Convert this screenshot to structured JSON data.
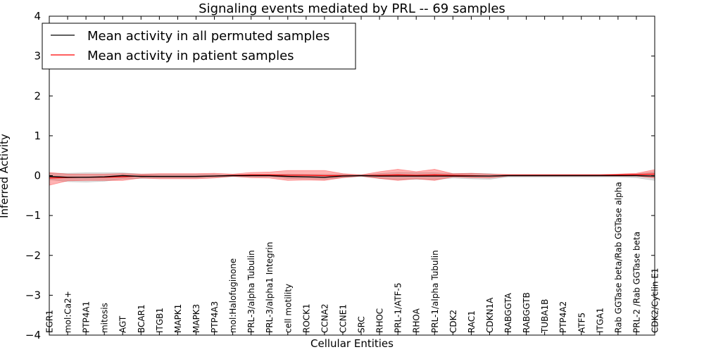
{
  "chart_data": {
    "type": "line",
    "title": "Signaling events mediated by PRL -- 69 samples",
    "xlabel": "Cellular Entities",
    "ylabel": "Inferred Activity",
    "ylim": [
      -4,
      4
    ],
    "yticks": [
      4,
      3,
      2,
      1,
      0,
      -1,
      -2,
      -3,
      -4
    ],
    "ytick_labels": [
      "4",
      "3",
      "2",
      "1",
      "0",
      "−1",
      "−2",
      "−3",
      "−4"
    ],
    "legend_position": "top-left",
    "categories": [
      "EGR1",
      "mol:Ca2+",
      "PTP4A1",
      "mitosis",
      "AGT",
      "BCAR1",
      "ITGB1",
      "MAPK1",
      "MAPK3",
      "PTP4A3",
      "mol:Halofuginone",
      "PRL-3/alpha Tubulin",
      "PRL-3/alpha1 Integrin",
      "cell motility",
      "ROCK1",
      "CCNA2",
      "CCNE1",
      "SRC",
      "RHOC",
      "PRL-1/ATF-5",
      "RHOA",
      "PRL-1/alpha Tubulin",
      "CDK2",
      "RAC1",
      "CDKN1A",
      "RABGGTA",
      "RABGGTB",
      "TUBA1B",
      "PTP4A2",
      "ATF5",
      "ITGA1",
      "Rab GGTase beta/Rab GGTase alpha",
      "PRL-2 /Rab GGTase beta",
      "CDK2/Cyclin E1"
    ],
    "series": [
      {
        "name": "Mean activity in all permuted samples",
        "color": "#000000",
        "values": [
          -0.02,
          -0.04,
          -0.04,
          -0.03,
          0.0,
          -0.02,
          -0.02,
          -0.02,
          -0.02,
          -0.01,
          0.0,
          0.0,
          0.0,
          -0.02,
          -0.03,
          -0.04,
          -0.01,
          0.0,
          -0.01,
          -0.01,
          -0.01,
          -0.01,
          -0.01,
          -0.01,
          -0.01,
          0.0,
          0.0,
          0.0,
          0.0,
          0.0,
          0.0,
          0.0,
          0.0,
          -0.01
        ],
        "band_low": [
          -0.1,
          -0.15,
          -0.16,
          -0.14,
          -0.08,
          -0.07,
          -0.06,
          -0.06,
          -0.06,
          -0.04,
          -0.02,
          -0.02,
          -0.02,
          -0.07,
          -0.08,
          -0.09,
          -0.05,
          -0.02,
          -0.07,
          -0.1,
          -0.09,
          -0.1,
          -0.06,
          -0.08,
          -0.09,
          -0.03,
          -0.03,
          -0.03,
          -0.03,
          -0.03,
          -0.03,
          -0.03,
          -0.05,
          -0.12
        ],
        "band_high": [
          0.06,
          0.06,
          0.07,
          0.07,
          0.07,
          0.04,
          0.03,
          0.03,
          0.03,
          0.03,
          0.02,
          0.02,
          0.02,
          0.04,
          0.03,
          0.03,
          0.03,
          0.02,
          0.05,
          0.08,
          0.07,
          0.07,
          0.05,
          0.06,
          0.05,
          0.02,
          0.02,
          0.02,
          0.02,
          0.02,
          0.02,
          0.02,
          0.04,
          0.1
        ]
      },
      {
        "name": "Mean activity in patient samples",
        "color": "#ff0000",
        "values": [
          -0.06,
          -0.05,
          -0.04,
          -0.04,
          -0.03,
          -0.01,
          -0.02,
          -0.02,
          -0.02,
          -0.01,
          0.01,
          0.02,
          0.02,
          0.01,
          0.01,
          0.0,
          0.0,
          0.0,
          0.01,
          0.02,
          0.01,
          0.02,
          0.01,
          0.0,
          -0.01,
          0.01,
          0.01,
          0.01,
          0.01,
          0.01,
          0.01,
          0.02,
          0.03,
          0.04
        ],
        "band_low": [
          -0.24,
          -0.13,
          -0.12,
          -0.12,
          -0.12,
          -0.06,
          -0.08,
          -0.08,
          -0.08,
          -0.06,
          -0.02,
          -0.05,
          -0.06,
          -0.12,
          -0.11,
          -0.12,
          -0.05,
          -0.01,
          -0.07,
          -0.12,
          -0.08,
          -0.12,
          -0.03,
          -0.05,
          -0.06,
          -0.01,
          -0.01,
          -0.01,
          -0.01,
          -0.01,
          -0.01,
          -0.01,
          -0.01,
          -0.06
        ],
        "band_high": [
          0.08,
          0.04,
          0.04,
          0.04,
          0.05,
          0.04,
          0.05,
          0.05,
          0.05,
          0.06,
          0.04,
          0.08,
          0.09,
          0.13,
          0.13,
          0.13,
          0.05,
          0.02,
          0.1,
          0.16,
          0.1,
          0.16,
          0.05,
          0.06,
          0.04,
          0.03,
          0.03,
          0.03,
          0.03,
          0.03,
          0.03,
          0.04,
          0.06,
          0.15
        ]
      }
    ]
  }
}
